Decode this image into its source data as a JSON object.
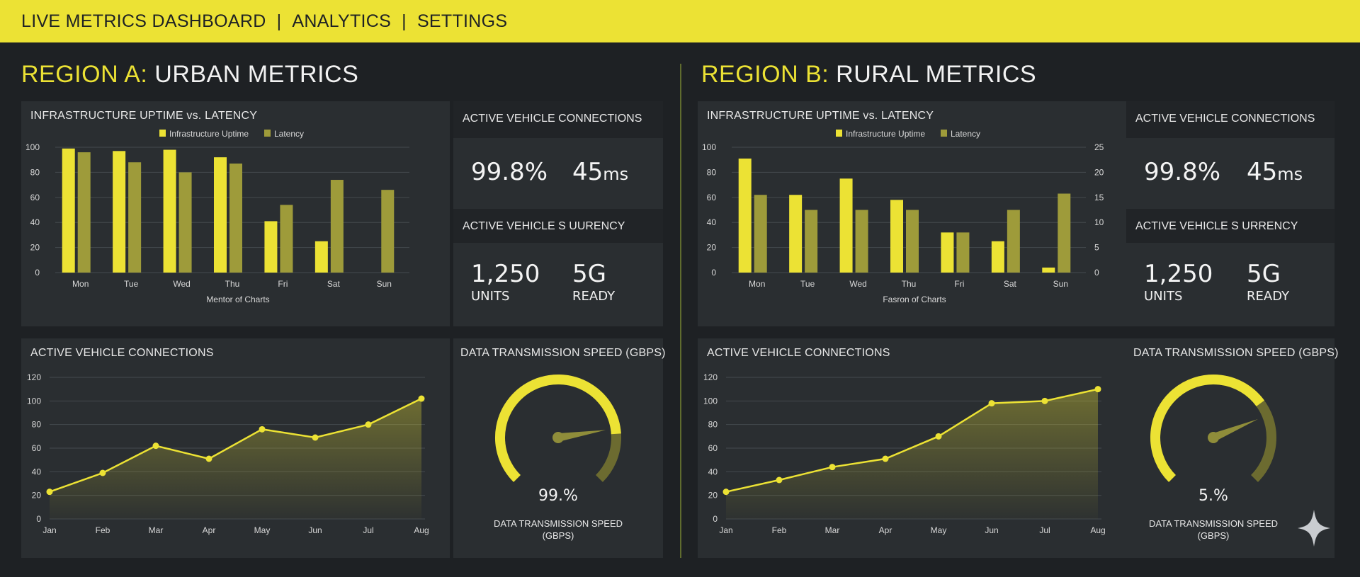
{
  "nav": {
    "items": [
      "LIVE METRICS DASHBOARD",
      "ANALYTICS",
      "SETTINGS"
    ],
    "separator": "|"
  },
  "colors": {
    "accent": "#ece234",
    "latency": "#9e9b3a",
    "background": "#1e2124",
    "panel": "#2a2e31"
  },
  "regions": [
    {
      "title_highlight": "REGION A:",
      "title_rest": "URBAN METRICS",
      "bar_title": "INFRASTRUCTURE UPTIME vs. LATENCY",
      "stat1_header": "ACTIVE VEHICLE CONNECTIONS",
      "uptime": "99.8%",
      "latency_num": "45",
      "latency_unit": "ms",
      "stat2_header": "ACTIVE VEHICLE S UURENCY",
      "units_value": "1,250",
      "units_label": "UNITS",
      "network_value": "5G",
      "network_label": "READY",
      "line_title": "ACTIVE VEHICLE CONNECTIONS",
      "gauge_title": "DATA TRANSMISSION SPEED (GBPS)",
      "gauge_value": "99.%",
      "gauge_caption_1": "DATA TRANSMISSION SPEED",
      "gauge_caption_2": "(GBPS)"
    },
    {
      "title_highlight": "REGION B:",
      "title_rest": "RURAL METRICS",
      "bar_title": "INFRASTRUCTURE UPTIME vs. LATENCY",
      "stat1_header": "ACTIVE VEHICLE CONNECTIONS",
      "uptime": "99.8%",
      "latency_num": "45",
      "latency_unit": "ms",
      "stat2_header": "ACTIVE VEHICLE S URRENCY",
      "units_value": "1,250",
      "units_label": "UNITS",
      "network_value": "5G",
      "network_label": "READY",
      "line_title": "ACTIVE VEHICLE CONNECTIONS",
      "gauge_title": "DATA TRANSMISSION SPEED (GBPS)",
      "gauge_value": "5.%",
      "gauge_caption_1": "DATA TRANSMISSION SPEED",
      "gauge_caption_2": "(GBPS)"
    }
  ],
  "chart_data": [
    {
      "id": "a-bar",
      "type": "bar",
      "title": "INFRASTRUCTURE UPTIME vs. LATENCY",
      "xlabel": "Mentor of Charts",
      "categories": [
        "Mon",
        "Tue",
        "Wed",
        "Thu",
        "Fri",
        "Sat",
        "Sun"
      ],
      "series": [
        {
          "name": "Infrastructure Uptime",
          "values": [
            99,
            97,
            98,
            92,
            41,
            25,
            0
          ]
        },
        {
          "name": "Latency",
          "values": [
            96,
            88,
            80,
            87,
            54,
            74,
            66
          ]
        }
      ],
      "ylim": [
        0,
        100
      ],
      "yticks": [
        0,
        20,
        40,
        60,
        80,
        100
      ],
      "grid": true,
      "legend": "top-center"
    },
    {
      "id": "b-bar",
      "type": "bar",
      "title": "INFRASTRUCTURE UPTIME vs. LATENCY",
      "xlabel": "Fasron of Charts",
      "categories": [
        "Mon",
        "Tue",
        "Wed",
        "Thu",
        "Fri",
        "Sat",
        "Sun"
      ],
      "series": [
        {
          "name": "Infrastructure Uptime",
          "values": [
            91,
            62,
            75,
            58,
            32,
            25,
            4
          ]
        },
        {
          "name": "Latency",
          "values": [
            62,
            50,
            50,
            50,
            32,
            50,
            63
          ]
        }
      ],
      "ylim": [
        0,
        100
      ],
      "yticks": [
        0,
        20,
        40,
        60,
        80,
        100
      ],
      "y2ticks": [
        0,
        5,
        10,
        15,
        20,
        25
      ],
      "grid": true,
      "legend": "top-center"
    },
    {
      "id": "a-line",
      "type": "area",
      "title": "ACTIVE VEHICLE CONNECTIONS",
      "categories": [
        "Jan",
        "Feb",
        "Mar",
        "Apr",
        "May",
        "Jun",
        "Jul",
        "Aug"
      ],
      "values": [
        23,
        39,
        62,
        51,
        76,
        69,
        80,
        102
      ],
      "ylim": [
        0,
        120
      ],
      "yticks": [
        0,
        20,
        40,
        60,
        80,
        100,
        120
      ],
      "grid": true
    },
    {
      "id": "b-line",
      "type": "area",
      "title": "ACTIVE VEHICLE CONNECTIONS",
      "categories": [
        "Jan",
        "Feb",
        "Mar",
        "Apr",
        "May",
        "Jun",
        "Jul",
        "Aug"
      ],
      "values": [
        23,
        33,
        44,
        51,
        70,
        98,
        100,
        110
      ],
      "ylim": [
        0,
        120
      ],
      "yticks": [
        0,
        20,
        40,
        60,
        80,
        100,
        120
      ],
      "grid": true
    }
  ],
  "gauges": [
    {
      "id": "a-gauge",
      "fill_fraction": 0.82,
      "needle_fraction": 0.8
    },
    {
      "id": "b-gauge",
      "fill_fraction": 0.7,
      "needle_fraction": 0.75
    }
  ],
  "brand_icon": "sparkle-icon"
}
